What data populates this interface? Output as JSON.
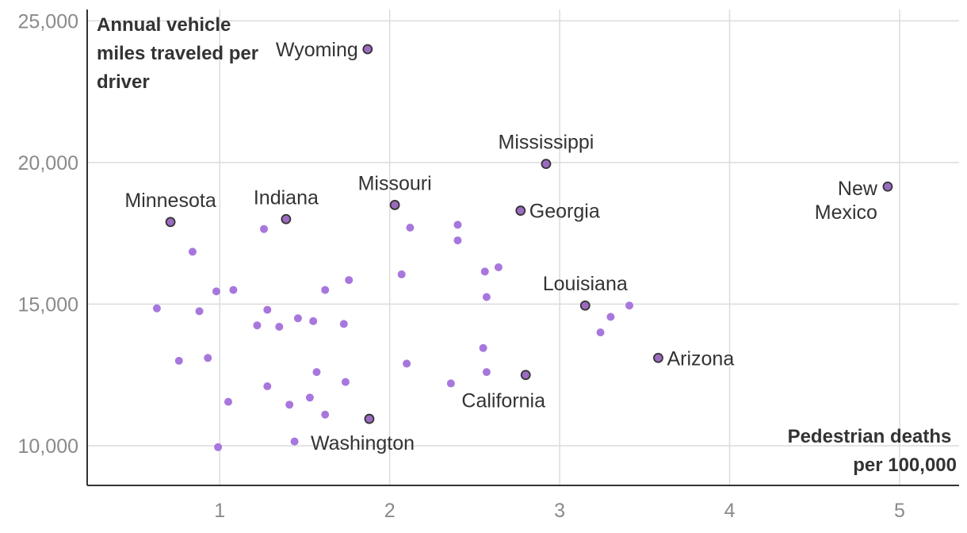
{
  "chart_data": {
    "type": "scatter",
    "xlabel": [
      "Pedestrian deaths",
      "per 100,000"
    ],
    "ylabel": [
      "Annual vehicle",
      "miles traveled per",
      "driver"
    ],
    "xlim": [
      0.22,
      5.35
    ],
    "ylim": [
      8600,
      25400
    ],
    "xticks": [
      1,
      2,
      3,
      4,
      5
    ],
    "xtick_labels": [
      "1",
      "2",
      "3",
      "4",
      "5"
    ],
    "yticks": [
      10000,
      15000,
      20000,
      25000
    ],
    "ytick_labels": [
      "10,000",
      "15,000",
      "20,000",
      "25,000"
    ],
    "grid": true,
    "colors": {
      "highlight": "#9b6bc0",
      "highlight_stroke": "#333333",
      "other": "#a877dd"
    },
    "labeled_points": [
      {
        "name": "Wyoming",
        "x": 1.87,
        "y": 24000,
        "label": "Wyoming",
        "anchor": "left"
      },
      {
        "name": "Mississippi",
        "x": 2.92,
        "y": 19950,
        "label": "Mississippi",
        "anchor": "above"
      },
      {
        "name": "New Mexico",
        "x": 4.93,
        "y": 19150,
        "label": [
          "New",
          "Mexico"
        ],
        "anchor": "left-stack"
      },
      {
        "name": "Minnesota",
        "x": 0.71,
        "y": 17900,
        "label": "Minnesota",
        "anchor": "above"
      },
      {
        "name": "Indiana",
        "x": 1.39,
        "y": 18000,
        "label": "Indiana",
        "anchor": "above"
      },
      {
        "name": "Missouri",
        "x": 2.03,
        "y": 18500,
        "label": "Missouri",
        "anchor": "above"
      },
      {
        "name": "Georgia",
        "x": 2.77,
        "y": 18300,
        "label": "Georgia",
        "anchor": "right"
      },
      {
        "name": "Louisiana",
        "x": 3.15,
        "y": 14950,
        "label": "Louisiana",
        "anchor": "above"
      },
      {
        "name": "Arizona",
        "x": 3.58,
        "y": 13100,
        "label": "Arizona",
        "anchor": "right"
      },
      {
        "name": "California",
        "x": 2.8,
        "y": 12500,
        "label": "California",
        "anchor": "below"
      },
      {
        "name": "Washington",
        "x": 1.88,
        "y": 10950,
        "label": "Washington",
        "anchor": "below-right"
      }
    ],
    "other_points": [
      [
        0.84,
        16850
      ],
      [
        1.26,
        17650
      ],
      [
        2.12,
        17700
      ],
      [
        2.4,
        17800
      ],
      [
        2.4,
        17250
      ],
      [
        1.76,
        15850
      ],
      [
        2.07,
        16050
      ],
      [
        2.56,
        16150
      ],
      [
        2.64,
        16300
      ],
      [
        0.98,
        15450
      ],
      [
        1.08,
        15500
      ],
      [
        1.62,
        15500
      ],
      [
        2.57,
        15250
      ],
      [
        0.63,
        14850
      ],
      [
        0.88,
        14750
      ],
      [
        1.28,
        14800
      ],
      [
        1.46,
        14500
      ],
      [
        1.55,
        14400
      ],
      [
        1.22,
        14250
      ],
      [
        1.35,
        14200
      ],
      [
        1.73,
        14300
      ],
      [
        3.41,
        14950
      ],
      [
        3.3,
        14550
      ],
      [
        3.24,
        14000
      ],
      [
        2.55,
        13450
      ],
      [
        0.76,
        13000
      ],
      [
        0.93,
        13100
      ],
      [
        2.1,
        12900
      ],
      [
        1.57,
        12600
      ],
      [
        2.57,
        12600
      ],
      [
        1.74,
        12250
      ],
      [
        1.28,
        12100
      ],
      [
        2.36,
        12200
      ],
      [
        1.05,
        11550
      ],
      [
        1.53,
        11700
      ],
      [
        1.41,
        11450
      ],
      [
        1.62,
        11100
      ],
      [
        1.44,
        10150
      ],
      [
        0.99,
        9950
      ]
    ]
  }
}
